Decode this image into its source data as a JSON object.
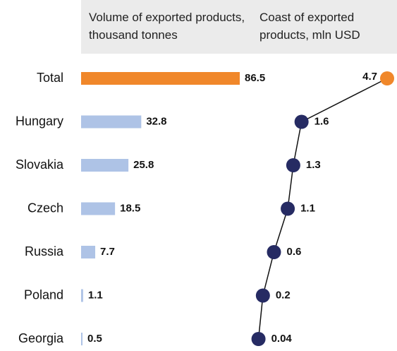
{
  "chart_data": {
    "type": "bar-dot",
    "categories": [
      "Total",
      "Hungary",
      "Slovakia",
      "Czech",
      "Russia",
      "Poland",
      "Georgia"
    ],
    "series": [
      {
        "name": "Volume of exported products, thousand tonnes",
        "values": [
          86.5,
          32.8,
          25.8,
          18.5,
          7.7,
          1.1,
          0.5
        ],
        "color": "#aec3e6",
        "highlight_color": "#f0872a"
      },
      {
        "name": "Coast of exported products, mln USD",
        "values": [
          4.7,
          1.6,
          1.3,
          1.1,
          0.6,
          0.2,
          0.04
        ],
        "color": "#262b63",
        "highlight_color": "#f0872a"
      }
    ],
    "xlim": [
      0,
      86.5
    ],
    "x2lim": [
      0,
      4.7
    ]
  }
}
